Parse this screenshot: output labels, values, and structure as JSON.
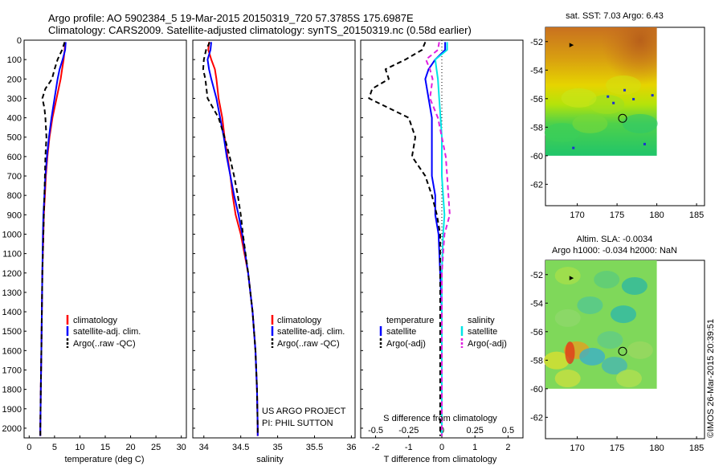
{
  "header": {
    "line1": "Argo profile: AO 5902384_5 19-Mar-2015 20150319_720 57.3785S 175.6987E",
    "line2": "Climatology: CARS2009. Satellite-adjusted climatology: synTS_20150319.nc (0.58d earlier)"
  },
  "depth_ticks": [
    "0",
    "100",
    "200",
    "300",
    "400",
    "500",
    "600",
    "700",
    "800",
    "900",
    "1000",
    "1100",
    "1200",
    "1300",
    "1400",
    "1500",
    "1600",
    "1700",
    "1800",
    "1900",
    "2000"
  ],
  "project": {
    "line1": "US ARGO PROJECT",
    "line2": "PI: PHIL SUTTON"
  },
  "sst_map_title": "sat. SST: 7.03  Argo: 6.43",
  "sla_map_title1": "Altim. SLA: -0.0034",
  "sla_map_title2": "Argo h1000: -0.034 h2000: NaN",
  "copyright": "©IMOS 26-Mar-2015 20:39:51",
  "colors": {
    "clim": "#ff0000",
    "sat": "#0000ff",
    "argo": "#000000",
    "sal_sat": "#00e5e5",
    "sal_argo": "#e020e0"
  },
  "chart_data": [
    {
      "type": "line",
      "xlabel": "temperature (deg C)",
      "ylabel": "",
      "xlim": [
        -1,
        31
      ],
      "ylim": [
        2050,
        0
      ],
      "xticks": [
        "0",
        "5",
        "10",
        "15",
        "20",
        "25",
        "30"
      ],
      "legend": [
        "climatology",
        "satellite-adj. clim.",
        "Argo(..raw -QC)"
      ],
      "legend_position": "lower-center",
      "series": [
        {
          "name": "climatology",
          "style": "solid",
          "color": "#ff0000",
          "depth": [
            10,
            50,
            100,
            150,
            200,
            300,
            400,
            500,
            600,
            700,
            800,
            900,
            1000,
            1200,
            1400,
            1600,
            1800,
            2000,
            2040
          ],
          "values": [
            7.1,
            7.0,
            6.8,
            6.5,
            6.2,
            5.4,
            4.6,
            4.0,
            3.6,
            3.3,
            3.1,
            2.9,
            2.8,
            2.6,
            2.5,
            2.4,
            2.3,
            2.2,
            2.2
          ]
        },
        {
          "name": "satellite-adj. clim.",
          "style": "solid",
          "color": "#0000ff",
          "depth": [
            10,
            50,
            100,
            150,
            200,
            300,
            400,
            500,
            600,
            700,
            800,
            900,
            1000,
            1200,
            1400,
            1600,
            1800,
            2000,
            2040
          ],
          "values": [
            7.2,
            7.1,
            6.6,
            6.0,
            5.6,
            5.0,
            4.4,
            3.9,
            3.5,
            3.2,
            3.0,
            2.8,
            2.7,
            2.6,
            2.5,
            2.4,
            2.3,
            2.2,
            2.2
          ]
        },
        {
          "name": "Argo(..raw -QC)",
          "style": "dashed",
          "color": "#000000",
          "depth": [
            10,
            50,
            100,
            150,
            200,
            250,
            300,
            350,
            400,
            500,
            600,
            700,
            800,
            900,
            1000,
            1200,
            1400,
            1600,
            1800,
            2000,
            2040
          ],
          "values": [
            7.0,
            6.5,
            5.6,
            5.0,
            4.5,
            3.2,
            2.6,
            3.0,
            3.2,
            3.4,
            3.2,
            3.1,
            3.0,
            2.9,
            2.8,
            2.6,
            2.5,
            2.4,
            2.3,
            2.2,
            2.2
          ]
        }
      ]
    },
    {
      "type": "line",
      "xlabel": "salinity",
      "ylabel": "",
      "xlim": [
        33.85,
        36.05
      ],
      "ylim": [
        2050,
        0
      ],
      "xticks": [
        "34",
        "34.5",
        "35",
        "35.5",
        "36"
      ],
      "legend": [
        "climatology",
        "satellite-adj. clim.",
        "Argo(..raw -QC)"
      ],
      "legend_position": "lower-right",
      "series": [
        {
          "name": "climatology",
          "style": "solid",
          "color": "#ff0000",
          "depth": [
            10,
            50,
            100,
            150,
            200,
            300,
            400,
            500,
            600,
            700,
            800,
            900,
            1000,
            1200,
            1400,
            1600,
            1800,
            2000,
            2040
          ],
          "values": [
            34.07,
            34.06,
            34.1,
            34.15,
            34.17,
            34.2,
            34.25,
            34.28,
            34.32,
            34.36,
            34.39,
            34.43,
            34.5,
            34.6,
            34.66,
            34.7,
            34.72,
            34.73,
            34.73
          ]
        },
        {
          "name": "satellite-adj. clim.",
          "style": "solid",
          "color": "#0000ff",
          "depth": [
            10,
            50,
            100,
            150,
            200,
            300,
            400,
            500,
            600,
            700,
            800,
            900,
            1000,
            1200,
            1400,
            1600,
            1800,
            2000,
            2040
          ],
          "values": [
            34.1,
            34.09,
            34.05,
            34.07,
            34.1,
            34.17,
            34.22,
            34.27,
            34.31,
            34.36,
            34.41,
            34.47,
            34.52,
            34.6,
            34.66,
            34.7,
            34.72,
            34.73,
            34.73
          ]
        },
        {
          "name": "Argo(..raw -QC)",
          "style": "dashed",
          "color": "#000000",
          "depth": [
            10,
            50,
            100,
            150,
            200,
            300,
            400,
            500,
            600,
            700,
            800,
            900,
            1000,
            1200,
            1400,
            1600,
            1800,
            2000,
            2040
          ],
          "values": [
            34.08,
            34.03,
            34.0,
            33.99,
            34.02,
            34.05,
            34.2,
            34.28,
            34.35,
            34.41,
            34.46,
            34.5,
            34.53,
            34.6,
            34.66,
            34.7,
            34.72,
            34.73,
            34.73
          ]
        }
      ]
    },
    {
      "type": "line",
      "xlabel": "T difference from climatology",
      "xlabel_top": "S difference from climatology",
      "ylabel": "",
      "xlim_T": [
        -2.45,
        2.45
      ],
      "xlim_S": [
        -0.6125,
        0.6125
      ],
      "ylim": [
        2050,
        0
      ],
      "xticks_T": [
        "-2",
        "-1",
        "0",
        "1",
        "2"
      ],
      "xticks_S": [
        "-0.5",
        "-0.25",
        "0",
        "0.25",
        "0.5"
      ],
      "legend": [
        "temperature",
        "satellite",
        "Argo(-adj)",
        "salinity",
        "satellite",
        "Argo(-adj)"
      ],
      "legend_position": "lower-center",
      "series": [
        {
          "name": "satellite",
          "group": "temperature",
          "style": "solid",
          "color": "#0000ff",
          "depth": [
            10,
            50,
            100,
            150,
            200,
            300,
            400,
            500,
            600,
            700,
            800,
            900,
            1000,
            1200,
            1400,
            1600,
            1800,
            2000,
            2040
          ],
          "values": [
            0.1,
            0.1,
            -0.2,
            -0.4,
            -0.5,
            -0.4,
            -0.3,
            -0.3,
            -0.3,
            -0.3,
            -0.2,
            -0.2,
            -0.1,
            -0.05,
            0,
            0,
            0,
            0,
            0
          ]
        },
        {
          "name": "Argo(-adj)",
          "group": "temperature",
          "style": "dashed",
          "color": "#000000",
          "depth": [
            10,
            50,
            100,
            150,
            200,
            250,
            300,
            350,
            400,
            500,
            600,
            700,
            800,
            900,
            1000,
            1200,
            1400,
            1600,
            1800,
            2000,
            2040
          ],
          "values": [
            -0.5,
            -0.6,
            -1.1,
            -1.7,
            -1.6,
            -2.1,
            -2.2,
            -1.6,
            -1.0,
            -0.8,
            -0.9,
            -0.5,
            -0.3,
            -0.15,
            -0.05,
            -0.05,
            -0.05,
            -0.05,
            -0.05,
            -0.05,
            -0.05
          ]
        },
        {
          "name": "satellite",
          "group": "salinity",
          "style": "solid",
          "color": "#00e5e5",
          "depth": [
            10,
            50,
            100,
            150,
            200,
            300,
            400,
            500,
            600,
            700,
            800,
            900,
            1000,
            1200,
            1400,
            1600,
            1800,
            2000,
            2040
          ],
          "values": [
            0.04,
            0.04,
            -0.05,
            -0.04,
            -0.03,
            -0.02,
            -0.01,
            0,
            0,
            0,
            0.01,
            0.02,
            0.01,
            0,
            0,
            0,
            0,
            0,
            0
          ]
        },
        {
          "name": "Argo(-adj)",
          "group": "salinity",
          "style": "dashed",
          "color": "#e020e0",
          "depth": [
            10,
            50,
            100,
            150,
            200,
            300,
            400,
            500,
            600,
            700,
            800,
            900,
            1000,
            1200,
            1400,
            1600,
            1800,
            2000,
            2040
          ],
          "values": [
            -0.02,
            -0.03,
            -0.12,
            -0.09,
            -0.07,
            -0.09,
            -0.03,
            0,
            0.03,
            0.04,
            0.05,
            0.06,
            0.02,
            0,
            0,
            0,
            0,
            0,
            0
          ]
        }
      ]
    },
    {
      "type": "heatmap",
      "title": "sat. SST: 7.03  Argo: 6.43",
      "xlim": [
        166,
        186
      ],
      "ylim": [
        -63.5,
        -51
      ],
      "xticks": [
        "170",
        "175",
        "180",
        "185"
      ],
      "yticks": [
        "-52",
        "-54",
        "-56",
        "-58",
        "-60",
        "-62"
      ],
      "marker": {
        "lon": 175.6987,
        "lat": -57.3785
      }
    },
    {
      "type": "heatmap",
      "title": "Altim. SLA: -0.0034",
      "xlim": [
        166,
        186
      ],
      "ylim": [
        -63.5,
        -51
      ],
      "xticks": [
        "170",
        "175",
        "180",
        "185"
      ],
      "yticks": [
        "-52",
        "-54",
        "-56",
        "-58",
        "-60",
        "-62"
      ],
      "marker": {
        "lon": 175.6987,
        "lat": -57.3785
      }
    }
  ]
}
